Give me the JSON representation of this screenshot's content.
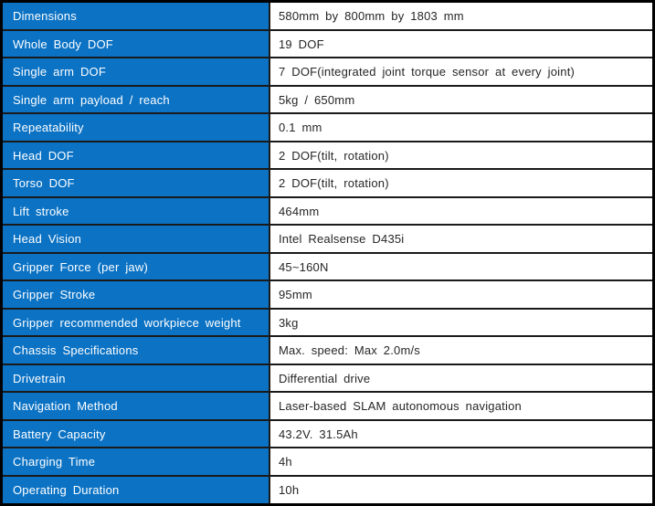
{
  "colors": {
    "label_cell_background": "#0b72c4",
    "label_text": "#ffffff",
    "value_text": "#262626",
    "grid_border": "#1a1a1a",
    "outer_border": "#000000"
  },
  "table": {
    "rows": [
      {
        "label": "Dimensions",
        "value": "580mm by 800mm by 1803 mm"
      },
      {
        "label": "Whole Body DOF",
        "value": "19 DOF"
      },
      {
        "label": "Single arm DOF",
        "value": "7 DOF(integrated joint torque sensor at every joint)"
      },
      {
        "label": "Single arm payload / reach",
        "value": "5kg / 650mm"
      },
      {
        "label": "Repeatability",
        "value": "0.1 mm"
      },
      {
        "label": "Head DOF",
        "value": "2 DOF(tilt, rotation)"
      },
      {
        "label": "Torso DOF",
        "value": "2 DOF(tilt, rotation)"
      },
      {
        "label": "Lift stroke",
        "value": "464mm"
      },
      {
        "label": "Head Vision",
        "value": "Intel Realsense D435i"
      },
      {
        "label": "Gripper Force (per jaw)",
        "value": "45~160N"
      },
      {
        "label": "Gripper Stroke",
        "value": "95mm"
      },
      {
        "label": "Gripper recommended workpiece weight",
        "value": "3kg"
      },
      {
        "label": "Chassis Specifications",
        "value": "Max. speed: Max 2.0m/s"
      },
      {
        "label": "Drivetrain",
        "value": "Differential drive"
      },
      {
        "label": "Navigation Method",
        "value": "Laser-based SLAM autonomous navigation"
      },
      {
        "label": "Battery Capacity",
        "value": "43.2V. 31.5Ah"
      },
      {
        "label": "Charging Time",
        "value": "4h"
      },
      {
        "label": "Operating Duration",
        "value": "10h"
      }
    ]
  }
}
